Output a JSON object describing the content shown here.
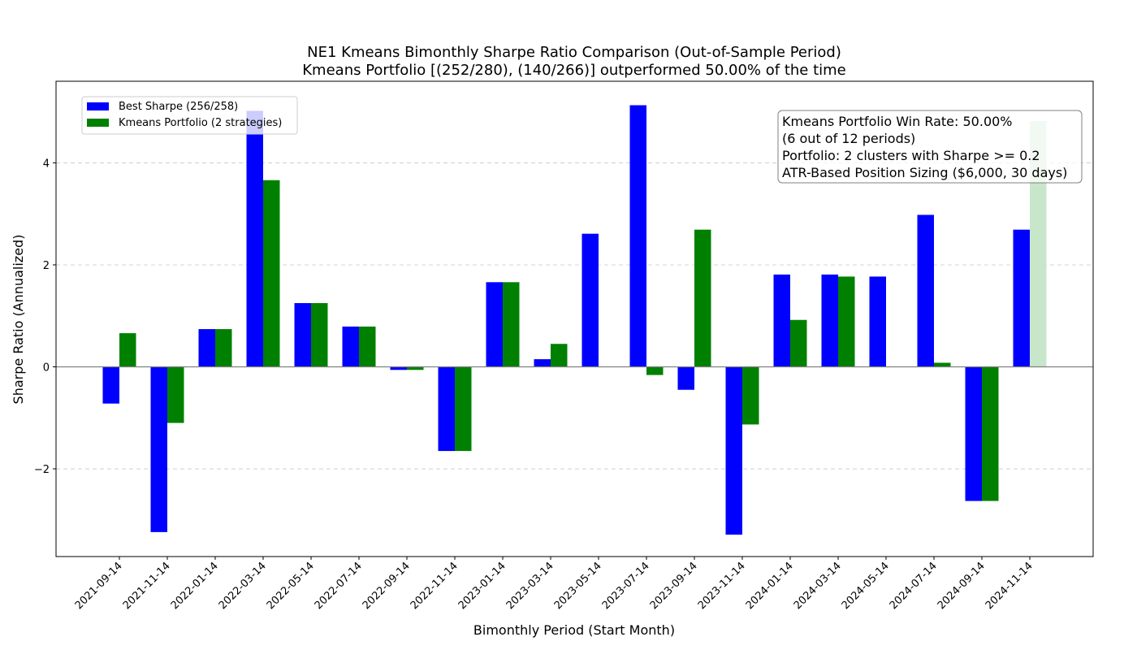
{
  "chart_data": {
    "type": "bar",
    "title": "NE1 Kmeans Bimonthly Sharpe Ratio Comparison (Out-of-Sample Period)",
    "subtitle": "Kmeans Portfolio [(252/280), (140/266)] outperformed 50.00% of the time",
    "xlabel": "Bimonthly Period (Start Month)",
    "ylabel": "Sharpe Ratio (Annualized)",
    "ylim": [
      -3.72,
      5.6
    ],
    "yticks": [
      -2,
      0,
      2,
      4
    ],
    "grid": true,
    "legend_position": "top-left",
    "categories": [
      "2021-09-14",
      "2021-11-14",
      "2022-01-14",
      "2022-03-14",
      "2022-05-14",
      "2022-07-14",
      "2022-09-14",
      "2022-11-14",
      "2023-01-14",
      "2023-03-14",
      "2023-05-14",
      "2023-07-14",
      "2023-09-14",
      "2023-11-14",
      "2024-01-14",
      "2024-03-14",
      "2024-05-14",
      "2024-07-14",
      "2024-09-14",
      "2024-11-14"
    ],
    "series": [
      {
        "name": "Best Sharpe (256/258)",
        "color": "#0000ff",
        "values": [
          -0.72,
          -3.24,
          0.74,
          5.02,
          1.25,
          0.79,
          -0.06,
          -1.65,
          1.66,
          0.15,
          2.61,
          5.13,
          -0.45,
          -3.29,
          1.81,
          1.81,
          1.77,
          2.98,
          -2.63,
          2.69
        ]
      },
      {
        "name": "Kmeans Portfolio (2 strategies)",
        "color": "#008000",
        "values": [
          0.66,
          -1.1,
          0.74,
          3.66,
          1.25,
          0.79,
          -0.06,
          -1.65,
          1.66,
          0.45,
          0.0,
          -0.16,
          2.69,
          -1.13,
          0.92,
          1.77,
          0.0,
          0.08,
          -2.63,
          4.82
        ]
      }
    ],
    "annotation": [
      "Kmeans Portfolio Win Rate: 50.00%",
      "(6 out of 12 periods)",
      "Portfolio: 2 clusters with Sharpe >= 0.2",
      "ATR-Based Position Sizing ($6,000, 30 days)"
    ]
  }
}
